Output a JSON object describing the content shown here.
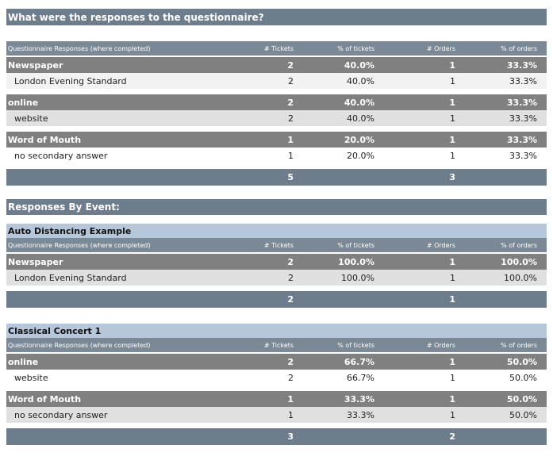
{
  "title": "What were the responses to the questionnaire?",
  "summary": {
    "header": [
      "Questionnaire Responses (where completed)",
      "# Tickets",
      "% of tickets",
      "# Orders",
      "% of orders"
    ],
    "groups": [
      {
        "row": [
          "Newspaper",
          "2",
          "40.0%",
          "1",
          "33.3%"
        ],
        "sub": [
          "London Evening Standard",
          "2",
          "40.0%",
          "1",
          "33.3%"
        ]
      },
      {
        "row": [
          "online",
          "2",
          "40.0%",
          "1",
          "33.3%"
        ],
        "sub": [
          "website",
          "2",
          "40.0%",
          "1",
          "33.3%"
        ]
      },
      {
        "row": [
          "Word of Mouth",
          "1",
          "20.0%",
          "1",
          "33.3%"
        ],
        "sub": [
          "no secondary answer",
          "1",
          "20.0%",
          "1",
          "33.3%"
        ]
      }
    ],
    "total": {
      "tickets": "5",
      "orders": "3"
    }
  },
  "by_event": {
    "heading": "Responses By Event:",
    "events": [
      {
        "name": "Auto Distancing Example",
        "header": [
          "Questionnaire Responses (where completed)",
          "# Tickets",
          "% of tickets",
          "# Orders",
          "% of orders"
        ],
        "groups": [
          {
            "row": [
              "Newspaper",
              "2",
              "100.0%",
              "1",
              "100.0%"
            ],
            "sub": [
              "London Evening Standard",
              "2",
              "100.0%",
              "1",
              "100.0%"
            ]
          }
        ],
        "total": {
          "tickets": "2",
          "orders": "1"
        }
      },
      {
        "name": "Classical Concert 1",
        "header": [
          "Questionnaire Responses (where completed)",
          "# Tickets",
          "% of tickets",
          "# Orders",
          "% of orders"
        ],
        "groups": [
          {
            "row": [
              "online",
              "2",
              "66.7%",
              "1",
              "50.0%"
            ],
            "sub": [
              "website",
              "2",
              "66.7%",
              "1",
              "50.0%"
            ]
          },
          {
            "row": [
              "Word of Mouth",
              "1",
              "33.3%",
              "1",
              "50.0%"
            ],
            "sub": [
              "no secondary answer",
              "1",
              "33.3%",
              "1",
              "50.0%"
            ]
          }
        ],
        "total": {
          "tickets": "3",
          "orders": "2"
        }
      }
    ]
  }
}
